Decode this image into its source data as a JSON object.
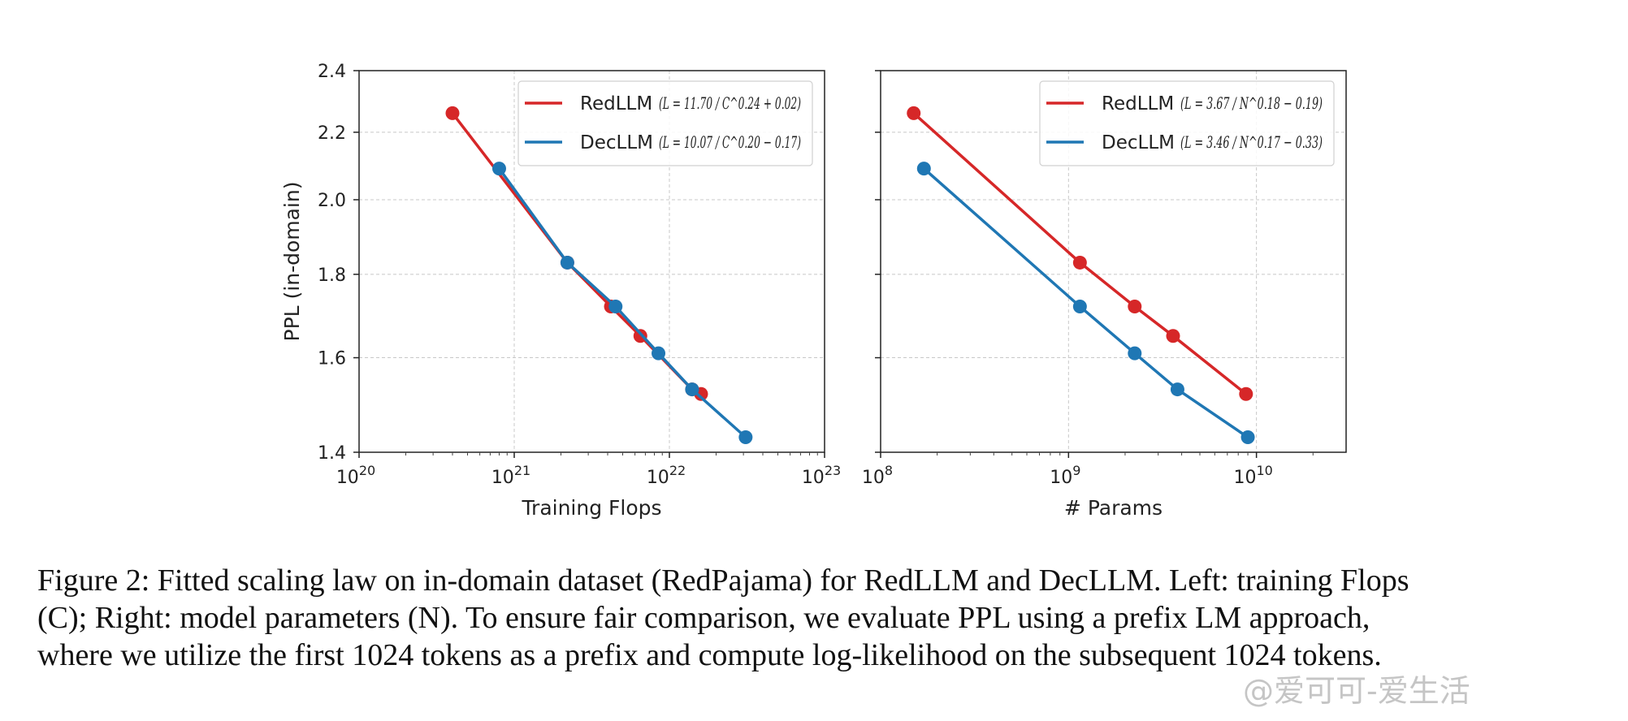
{
  "chart_data": [
    {
      "type": "line",
      "xscale": "log",
      "yscale": "log",
      "xlabel": "Training Flops",
      "ylabel": "PPL (in-domain)",
      "xlim": [
        1e+20,
        1e+23
      ],
      "ylim": [
        1.4,
        2.4
      ],
      "x_ticks": [
        {
          "base": "10",
          "exp": "20",
          "value": 1e+20
        },
        {
          "base": "10",
          "exp": "21",
          "value": 1e+21
        },
        {
          "base": "10",
          "exp": "22",
          "value": 1e+22
        },
        {
          "base": "10",
          "exp": "23",
          "value": 1e+23
        }
      ],
      "y_ticks": [
        "1.4",
        "1.6",
        "1.8",
        "2.0",
        "2.2",
        "2.4"
      ],
      "grid": true,
      "legend_position": "top-right",
      "series": [
        {
          "name": "RedLLM",
          "formula": "(L = 11.70 / C^0.24 + 0.02)",
          "color": "#d62728",
          "points": [
            [
              4e+20,
              2.26
            ],
            [
              2.2e+21,
              1.83
            ],
            [
              4.2e+21,
              1.72
            ],
            [
              6.5e+21,
              1.65
            ],
            [
              1.4e+22,
              1.53
            ],
            [
              1.6e+22,
              1.52
            ]
          ]
        },
        {
          "name": "DecLLM",
          "formula": "(L = 10.07 / C^0.20 − 0.17)",
          "color": "#1f77b4",
          "points": [
            [
              8e+20,
              2.09
            ],
            [
              2.2e+21,
              1.83
            ],
            [
              4.5e+21,
              1.72
            ],
            [
              8.5e+21,
              1.61
            ],
            [
              1.4e+22,
              1.53
            ],
            [
              3.1e+22,
              1.43
            ]
          ]
        }
      ]
    },
    {
      "type": "line",
      "xscale": "log",
      "yscale": "log",
      "xlabel": "# Params",
      "ylabel": "",
      "xlim": [
        100000000.0,
        30000000000.0
      ],
      "ylim": [
        1.4,
        2.4
      ],
      "x_ticks": [
        {
          "base": "10",
          "exp": "8",
          "value": 100000000.0
        },
        {
          "base": "10",
          "exp": "9",
          "value": 1000000000.0
        },
        {
          "base": "10",
          "exp": "10",
          "value": 10000000000.0
        }
      ],
      "y_ticks": [],
      "grid": true,
      "legend_position": "top-right",
      "series": [
        {
          "name": "RedLLM",
          "formula": "(L = 3.67 / N^0.18 − 0.19)",
          "color": "#d62728",
          "points": [
            [
              150000000.0,
              2.26
            ],
            [
              1150000000.0,
              1.83
            ],
            [
              2250000000.0,
              1.72
            ],
            [
              3600000000.0,
              1.65
            ],
            [
              8800000000.0,
              1.52
            ]
          ]
        },
        {
          "name": "DecLLM",
          "formula": "(L = 3.46 / N^0.17 − 0.33)",
          "color": "#1f77b4",
          "points": [
            [
              170000000.0,
              2.09
            ],
            [
              1150000000.0,
              1.72
            ],
            [
              2250000000.0,
              1.61
            ],
            [
              3800000000.0,
              1.53
            ],
            [
              9000000000.0,
              1.43
            ]
          ]
        }
      ]
    }
  ],
  "caption": {
    "lines": [
      "Figure 2:  Fitted scaling law on in-domain dataset (RedPajama) for RedLLM and DecLLM. Left: training Flops",
      "(C); Right: model parameters (N). To ensure fair comparison, we evaluate PPL using a prefix LM approach,",
      "where we utilize the first 1024 tokens as a prefix and compute log-likelihood on the subsequent 1024 tokens."
    ]
  },
  "watermark": "@爱可可-爱生活"
}
